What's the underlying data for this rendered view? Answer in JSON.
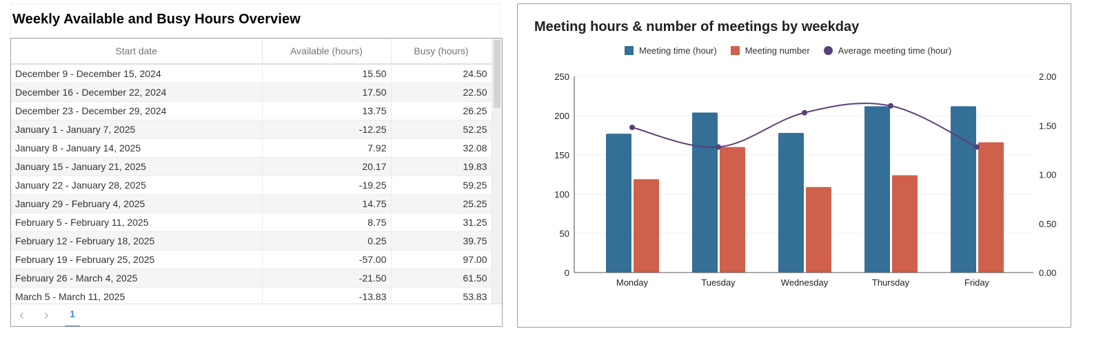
{
  "table": {
    "title": "Weekly Available and Busy Hours Overview",
    "columns": [
      "Start date",
      "Available (hours)",
      "Busy (hours)"
    ],
    "rows": [
      {
        "start_date": "December 9 - December 15, 2024",
        "available": "15.50",
        "busy": "24.50"
      },
      {
        "start_date": "December 16 - December 22, 2024",
        "available": "17.50",
        "busy": "22.50"
      },
      {
        "start_date": "December 23 - December 29, 2024",
        "available": "13.75",
        "busy": "26.25"
      },
      {
        "start_date": "January 1 - January 7, 2025",
        "available": "-12.25",
        "busy": "52.25"
      },
      {
        "start_date": "January 8 - January 14, 2025",
        "available": "7.92",
        "busy": "32.08"
      },
      {
        "start_date": "January 15 - January 21, 2025",
        "available": "20.17",
        "busy": "19.83"
      },
      {
        "start_date": "January 22 - January 28, 2025",
        "available": "-19.25",
        "busy": "59.25"
      },
      {
        "start_date": "January 29 - February 4, 2025",
        "available": "14.75",
        "busy": "25.25"
      },
      {
        "start_date": "February 5 - February 11, 2025",
        "available": "8.75",
        "busy": "31.25"
      },
      {
        "start_date": "February 12 - February 18, 2025",
        "available": "0.25",
        "busy": "39.75"
      },
      {
        "start_date": "February 19 - February 25, 2025",
        "available": "-57.00",
        "busy": "97.00"
      },
      {
        "start_date": "February 26 - March 4, 2025",
        "available": "-21.50",
        "busy": "61.50"
      },
      {
        "start_date": "March 5 - March 11, 2025",
        "available": "-13.83",
        "busy": "53.83"
      }
    ],
    "pager": {
      "prev_icon": "‹",
      "next_icon": "›",
      "current_page": "1"
    }
  },
  "chart_data": {
    "type": "bar",
    "title": "Meeting hours & number of meetings by weekday",
    "categories": [
      "Monday",
      "Tuesday",
      "Wednesday",
      "Thursday",
      "Friday"
    ],
    "series": [
      {
        "name": "Meeting time (hour)",
        "type": "bar",
        "axis": "left",
        "color": "#336f96",
        "values": [
          177,
          204,
          178,
          212,
          212
        ]
      },
      {
        "name": "Meeting number",
        "type": "bar",
        "axis": "left",
        "color": "#cf604c",
        "values": [
          119,
          160,
          109,
          124,
          166
        ]
      },
      {
        "name": "Average meeting time (hour)",
        "type": "line",
        "axis": "right",
        "color": "#5b3f78",
        "values": [
          1.48,
          1.28,
          1.63,
          1.7,
          1.28
        ]
      }
    ],
    "xlabel": "",
    "ylabel": "",
    "ylim": [
      0,
      250
    ],
    "y_ticks": [
      "0",
      "50",
      "100",
      "150",
      "200",
      "250"
    ],
    "y2lim": [
      0,
      2.0
    ],
    "y2_ticks": [
      "0.00",
      "0.50",
      "1.00",
      "1.50",
      "2.00"
    ],
    "grid": true,
    "legend_position": "top"
  }
}
